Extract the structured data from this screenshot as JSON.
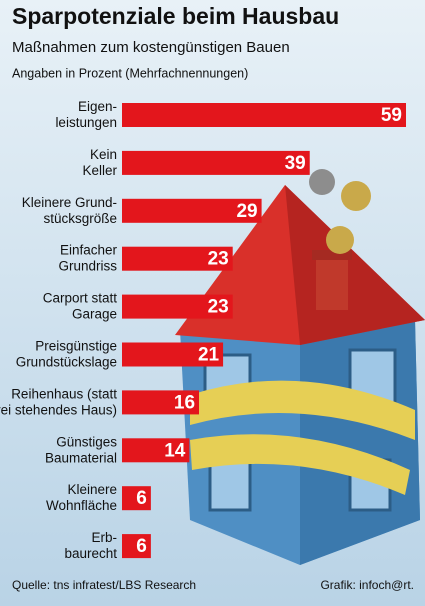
{
  "chart_data": {
    "type": "bar",
    "orientation": "horizontal",
    "title": "Sparpotenziale beim Hausbau",
    "subtitle": "Maßnahmen zum kostengünstigen Bauen",
    "note": "Angaben in Prozent (Mehrfachnennungen)",
    "categories": [
      [
        "Eigen-",
        "leistungen"
      ],
      [
        "Kein",
        "Keller"
      ],
      [
        "Kleinere Grund-",
        "stücksgröße"
      ],
      [
        "Einfacher",
        "Grundriss"
      ],
      [
        "Carport statt",
        "Garage"
      ],
      [
        "Preisgünstige",
        "Grundstückslage"
      ],
      [
        "Reihenhaus (statt",
        "frei stehendes Haus)"
      ],
      [
        "Günstiges",
        "Baumaterial"
      ],
      [
        "Kleinere",
        "Wohnfläche"
      ],
      [
        "Erb-",
        "baurecht"
      ]
    ],
    "values": [
      59,
      39,
      29,
      23,
      23,
      21,
      16,
      14,
      6,
      6
    ],
    "color": "#e3161c",
    "source": "Quelle: tns infratest/LBS Research",
    "credit": "Grafik: infoch@rt."
  }
}
